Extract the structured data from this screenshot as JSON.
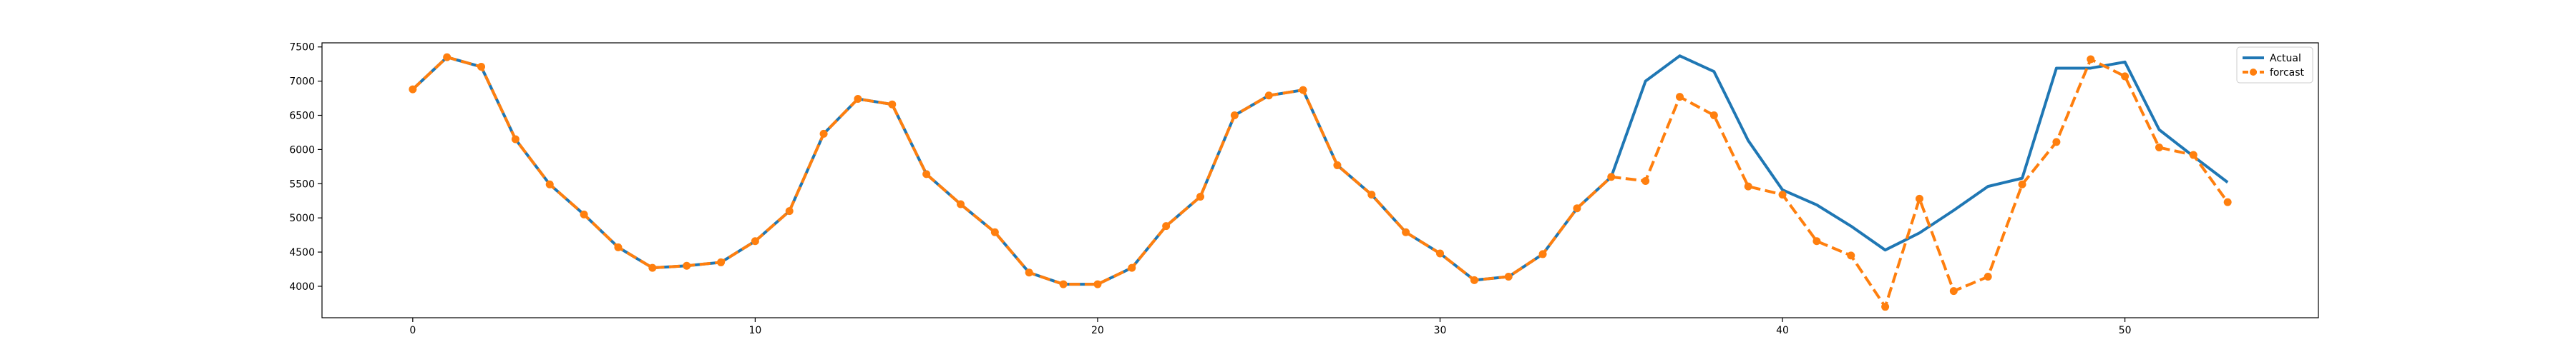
{
  "chart_data": {
    "type": "line",
    "x": [
      0,
      1,
      2,
      3,
      4,
      5,
      6,
      7,
      8,
      9,
      10,
      11,
      12,
      13,
      14,
      15,
      16,
      17,
      18,
      19,
      20,
      21,
      22,
      23,
      24,
      25,
      26,
      27,
      28,
      29,
      30,
      31,
      32,
      33,
      34,
      35,
      36,
      37,
      38,
      39,
      40,
      41,
      42,
      43,
      44,
      45,
      46,
      47,
      48,
      49,
      50,
      51,
      52,
      53
    ],
    "series": [
      {
        "name": "Actual",
        "color": "#1f77b4",
        "style": "solid",
        "marker": "none",
        "values": [
          6880,
          7350,
          7210,
          6150,
          5490,
          5050,
          4570,
          4270,
          4300,
          4350,
          4660,
          5100,
          6230,
          6740,
          6660,
          5640,
          5200,
          4790,
          4200,
          4030,
          4030,
          4270,
          4880,
          5310,
          6500,
          6790,
          6870,
          5770,
          5340,
          4790,
          4480,
          4090,
          4140,
          4470,
          5140,
          5600,
          7000,
          7370,
          7140,
          6130,
          5410,
          5190,
          4880,
          4530,
          4780,
          5110,
          5460,
          5580,
          7190,
          7190,
          7280,
          6290,
          5900,
          5520
        ]
      },
      {
        "name": "forcast",
        "color": "#ff7f0e",
        "style": "dashed",
        "marker": "circle",
        "values": [
          6880,
          7350,
          7210,
          6150,
          5490,
          5050,
          4570,
          4270,
          4300,
          4350,
          4660,
          5100,
          6230,
          6740,
          6660,
          5640,
          5200,
          4790,
          4200,
          4030,
          4030,
          4270,
          4880,
          5310,
          6500,
          6790,
          6870,
          5770,
          5340,
          4790,
          4480,
          4090,
          4140,
          4470,
          5140,
          5600,
          5540,
          6770,
          6500,
          5460,
          5340,
          4660,
          4450,
          3700,
          5280,
          3930,
          4140,
          5490,
          6110,
          7320,
          7070,
          6030,
          5920,
          5230
        ]
      }
    ],
    "xlim": [
      -2.65,
      55.65
    ],
    "ylim": [
      3540,
      7560
    ],
    "xticks": [
      0,
      10,
      20,
      30,
      40,
      50
    ],
    "yticks": [
      4000,
      4500,
      5000,
      5500,
      6000,
      6500,
      7000,
      7500
    ],
    "title": "",
    "xlabel": "",
    "ylabel": "",
    "grid": false,
    "legend": {
      "position": "top-right",
      "entries": [
        "Actual",
        "forcast"
      ]
    }
  }
}
